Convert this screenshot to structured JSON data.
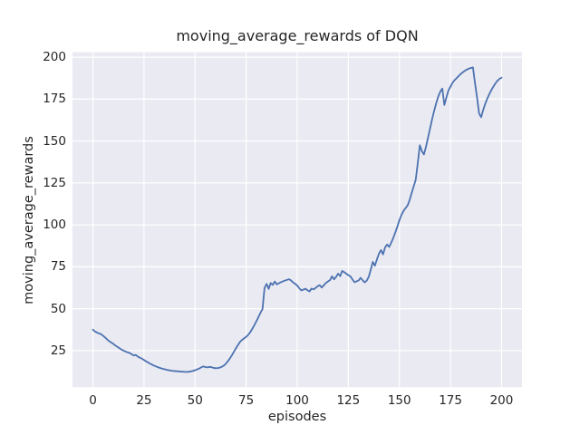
{
  "chart_data": {
    "type": "line",
    "title": "moving_average_rewards of DQN",
    "xlabel": "episodes",
    "ylabel": "moving_average_rewards",
    "xlim": [
      -10,
      210
    ],
    "ylim": [
      3.2,
      203
    ],
    "xticks": [
      0,
      25,
      50,
      75,
      100,
      125,
      150,
      175,
      200
    ],
    "yticks": [
      25,
      50,
      75,
      100,
      125,
      150,
      175,
      200
    ],
    "grid": true,
    "legend": false,
    "colors": {
      "line": "#4C72B0",
      "plot_background": "#EAEAF2",
      "grid": "#FFFFFF",
      "text": "#262626",
      "figure_background": "#FFFFFF"
    },
    "x": [
      0,
      1,
      2,
      3,
      4,
      5,
      6,
      7,
      8,
      9,
      10,
      11,
      12,
      13,
      14,
      15,
      16,
      17,
      18,
      19,
      20,
      21,
      22,
      23,
      24,
      25,
      26,
      27,
      28,
      29,
      30,
      31,
      32,
      33,
      34,
      35,
      36,
      37,
      38,
      39,
      40,
      41,
      42,
      43,
      44,
      45,
      46,
      47,
      48,
      49,
      50,
      51,
      52,
      53,
      54,
      55,
      56,
      57,
      58,
      59,
      60,
      61,
      62,
      63,
      64,
      65,
      66,
      67,
      68,
      69,
      70,
      71,
      72,
      73,
      74,
      75,
      76,
      77,
      78,
      79,
      80,
      81,
      82,
      83,
      84,
      85,
      86,
      87,
      88,
      89,
      90,
      91,
      92,
      93,
      94,
      95,
      96,
      97,
      98,
      99,
      100,
      101,
      102,
      103,
      104,
      105,
      106,
      107,
      108,
      109,
      110,
      111,
      112,
      113,
      114,
      115,
      116,
      117,
      118,
      119,
      120,
      121,
      122,
      123,
      124,
      125,
      126,
      127,
      128,
      129,
      130,
      131,
      132,
      133,
      134,
      135,
      136,
      137,
      138,
      139,
      140,
      141,
      142,
      143,
      144,
      145,
      146,
      147,
      148,
      149,
      150,
      151,
      152,
      153,
      154,
      155,
      156,
      157,
      158,
      159,
      160,
      161,
      162,
      163,
      164,
      165,
      166,
      167,
      168,
      169,
      170,
      171,
      172,
      173,
      174,
      175,
      176,
      177,
      178,
      179,
      180,
      181,
      182,
      183,
      184,
      185,
      186,
      187,
      188,
      189,
      190,
      191,
      192,
      193,
      194,
      195,
      196,
      197,
      198,
      199,
      200
    ],
    "series": [
      {
        "name": "moving_average_rewards",
        "values": [
          37.5,
          36.4,
          35.8,
          35.2,
          34.8,
          33.8,
          32.8,
          31.6,
          30.6,
          29.8,
          29.0,
          28.0,
          27.2,
          26.4,
          25.6,
          25.0,
          24.4,
          24.0,
          23.6,
          22.8,
          22.1,
          22.4,
          21.4,
          20.8,
          20.2,
          19.4,
          18.6,
          17.9,
          17.2,
          16.6,
          16.0,
          15.5,
          15.0,
          14.6,
          14.2,
          13.9,
          13.6,
          13.3,
          13.1,
          12.9,
          12.8,
          12.7,
          12.6,
          12.5,
          12.4,
          12.3,
          12.3,
          12.4,
          12.6,
          12.9,
          13.3,
          13.8,
          14.3,
          15.0,
          15.6,
          15.2,
          15.0,
          15.3,
          15.1,
          14.7,
          14.5,
          14.6,
          14.8,
          15.3,
          16.0,
          17.1,
          18.6,
          20.3,
          22.2,
          24.3,
          26.4,
          28.4,
          30.2,
          31.4,
          32.3,
          33.2,
          34.4,
          36.0,
          38.0,
          40.2,
          42.5,
          45.0,
          47.5,
          49.8,
          62.5,
          64.8,
          61.8,
          65.3,
          64.2,
          66.2,
          64.5,
          65.2,
          65.8,
          66.3,
          66.8,
          67.2,
          67.6,
          66.8,
          65.6,
          64.8,
          63.8,
          62.2,
          60.9,
          61.4,
          61.9,
          61.0,
          60.3,
          62.0,
          61.5,
          62.4,
          63.4,
          64.0,
          62.6,
          64.0,
          65.3,
          66.2,
          67.0,
          69.3,
          67.5,
          69.0,
          70.9,
          69.4,
          72.5,
          71.8,
          70.9,
          70.0,
          69.3,
          67.5,
          65.8,
          66.3,
          66.8,
          68.4,
          67.0,
          65.7,
          66.7,
          69.0,
          73.4,
          77.9,
          75.6,
          79.4,
          82.8,
          85.0,
          82.4,
          86.6,
          88.3,
          86.8,
          89.4,
          92.2,
          95.5,
          99.0,
          102.8,
          105.9,
          108.3,
          110.0,
          111.5,
          114.8,
          119.0,
          123.0,
          127.0,
          137.0,
          147.5,
          144.0,
          142.0,
          146.5,
          152.0,
          157.5,
          163.0,
          168.0,
          172.5,
          176.5,
          179.5,
          181.3,
          171.5,
          176.0,
          180.2,
          182.5,
          184.8,
          186.3,
          187.5,
          188.8,
          190.0,
          191.0,
          191.9,
          192.6,
          193.2,
          193.6,
          193.9,
          184.5,
          176.0,
          166.5,
          164.2,
          168.5,
          172.2,
          175.3,
          178.0,
          180.4,
          182.5,
          184.4,
          186.0,
          187.1,
          187.8
        ]
      }
    ]
  }
}
